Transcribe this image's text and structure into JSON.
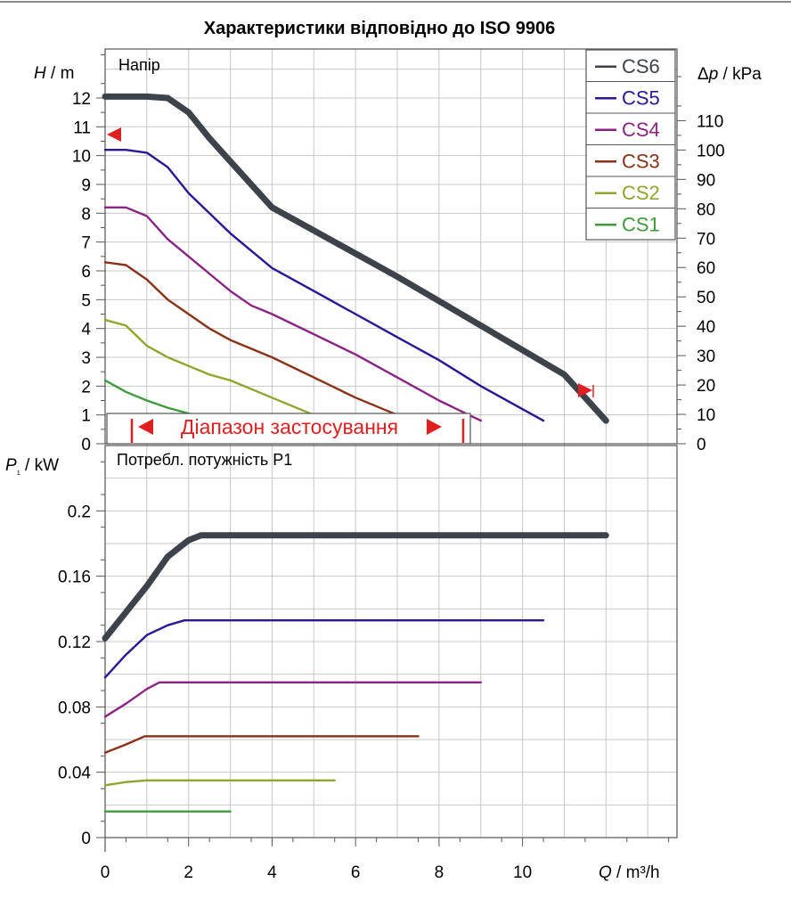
{
  "title": "Характеристики відповідно до ISO 9906",
  "colors": {
    "CS6": "#3d434a",
    "CS5": "#2a1696",
    "CS4": "#8c2384",
    "CS3": "#8a3118",
    "CS2": "#8ea62c",
    "CS1": "#3e9c3c",
    "range": "#e02020",
    "grid": "#c8c8c8"
  },
  "top_panel_label": "Напір",
  "bottom_panel_label": "Потребл. потужність P1",
  "range_label": "Діапазон застосування",
  "chart_data": [
    {
      "type": "line",
      "title": "Напір",
      "xlabel": "Q / m³/h",
      "ylabel": "H / m",
      "ylabel_right": "Δp / kPa",
      "xlim": [
        0,
        13.7
      ],
      "ylim": [
        0,
        13.7
      ],
      "x_ticks": [
        "0",
        "2",
        "4",
        "6",
        "8",
        "10"
      ],
      "y_ticks": [
        "0",
        "1",
        "2",
        "3",
        "4",
        "5",
        "6",
        "7",
        "8",
        "9",
        "10",
        "11",
        "12"
      ],
      "y_right_ticks": [
        "0",
        "10",
        "20",
        "30",
        "40",
        "50",
        "60",
        "70",
        "80",
        "90",
        "100",
        "110"
      ],
      "legend": [
        "CS6",
        "CS5",
        "CS4",
        "CS3",
        "CS2",
        "CS1"
      ],
      "legend_position": "top-right",
      "grid": true,
      "series": [
        {
          "name": "CS6",
          "x": [
            0,
            0.5,
            1,
            1.5,
            2,
            2.5,
            3,
            4,
            5,
            6,
            7,
            8,
            9,
            10,
            11,
            12
          ],
          "y": [
            12.05,
            12.05,
            12.05,
            12.0,
            11.5,
            10.6,
            9.8,
            8.2,
            7.4,
            6.6,
            5.8,
            4.95,
            4.1,
            3.25,
            2.4,
            0.8
          ]
        },
        {
          "name": "CS5",
          "x": [
            0,
            0.5,
            1,
            1.5,
            2,
            3,
            4,
            5,
            6,
            7,
            8,
            9,
            10,
            10.5
          ],
          "y": [
            10.2,
            10.2,
            10.1,
            9.6,
            8.7,
            7.3,
            6.1,
            5.3,
            4.5,
            3.7,
            2.9,
            2.0,
            1.2,
            0.8
          ]
        },
        {
          "name": "CS4",
          "x": [
            0,
            0.5,
            1,
            1.5,
            2,
            3,
            3.5,
            4,
            5,
            6,
            7,
            8,
            9
          ],
          "y": [
            8.2,
            8.2,
            7.9,
            7.1,
            6.5,
            5.3,
            4.8,
            4.5,
            3.8,
            3.1,
            2.3,
            1.5,
            0.8
          ]
        },
        {
          "name": "CS3",
          "x": [
            0,
            0.5,
            1,
            1.5,
            2,
            2.5,
            3,
            4,
            5,
            6,
            7,
            7.5
          ],
          "y": [
            6.3,
            6.2,
            5.7,
            5.0,
            4.5,
            4.0,
            3.6,
            3.0,
            2.3,
            1.6,
            1.0,
            0.8
          ]
        },
        {
          "name": "CS2",
          "x": [
            0,
            0.5,
            1,
            1.5,
            2,
            2.5,
            3,
            4,
            5,
            5.5
          ],
          "y": [
            4.3,
            4.1,
            3.4,
            3.0,
            2.7,
            2.4,
            2.2,
            1.6,
            1.0,
            0.8
          ]
        },
        {
          "name": "CS1",
          "x": [
            0,
            0.5,
            1,
            1.5,
            2,
            2.5,
            3
          ],
          "y": [
            2.2,
            1.8,
            1.5,
            1.25,
            1.05,
            0.9,
            0.8
          ]
        }
      ],
      "annotations": {
        "range_label": "Діапазон застосування",
        "range_x": [
          0.65,
          8.8
        ],
        "markers": [
          "left at H = 11 m",
          "right at Q = 12 m³/h"
        ]
      }
    },
    {
      "type": "line",
      "title": "Потребл. потужність P1",
      "xlabel": "Q / m³/h",
      "ylabel": "P₁ / kW",
      "xlim": [
        0,
        13.7
      ],
      "ylim": [
        0,
        0.24
      ],
      "x_ticks": [
        "0",
        "2",
        "4",
        "6",
        "8",
        "10"
      ],
      "y_ticks": [
        "0",
        "0.04",
        "0.08",
        "0.12",
        "0.16",
        "0.2"
      ],
      "grid": true,
      "series": [
        {
          "name": "CS6",
          "x": [
            0,
            1,
            1.5,
            2,
            2.3,
            12
          ],
          "y": [
            0.122,
            0.154,
            0.172,
            0.182,
            0.185,
            0.185
          ]
        },
        {
          "name": "CS5",
          "x": [
            0,
            0.5,
            1,
            1.5,
            1.9,
            10.5
          ],
          "y": [
            0.098,
            0.112,
            0.124,
            0.13,
            0.133,
            0.133
          ]
        },
        {
          "name": "CS4",
          "x": [
            0,
            0.5,
            1,
            1.3,
            9
          ],
          "y": [
            0.074,
            0.082,
            0.091,
            0.095,
            0.095
          ]
        },
        {
          "name": "CS3",
          "x": [
            0,
            0.5,
            0.95,
            7.5
          ],
          "y": [
            0.052,
            0.057,
            0.062,
            0.062
          ]
        },
        {
          "name": "CS2",
          "x": [
            0,
            0.5,
            1,
            5.5
          ],
          "y": [
            0.032,
            0.034,
            0.035,
            0.035
          ]
        },
        {
          "name": "CS1",
          "x": [
            0,
            3
          ],
          "y": [
            0.016,
            0.016
          ]
        }
      ]
    }
  ]
}
